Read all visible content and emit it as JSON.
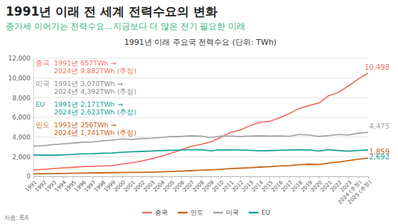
{
  "chart_data": {
    "type": "line",
    "title": "1991년 이래 전 세계 전력수요의 변화",
    "subtitle": "증가세 이어가는 전력수요…지금보다 더 많은 전기 필요한 미래",
    "chart_title": "1991년 이래 주요국 전력수요 (단위: TWh)",
    "source": "자료: IEA",
    "categories": [
      "1991",
      "1992",
      "1993",
      "1994",
      "1995",
      "1996",
      "1997",
      "1998",
      "1999",
      "2000",
      "2001",
      "2002",
      "2003",
      "2004",
      "2005",
      "2006",
      "2007",
      "2008",
      "2009",
      "2010",
      "2011",
      "2012",
      "2013",
      "2014",
      "2015",
      "2016",
      "2017",
      "2018",
      "2019",
      "2020",
      "2021",
      "2022",
      "2023",
      "2024 (추정)",
      "2025 (추정)"
    ],
    "ylim": [
      0,
      12000
    ],
    "yticks": [
      0,
      {
        "value": 2000,
        "label": "2,000"
      },
      {
        "value": 4000,
        "label": "4,000"
      },
      {
        "value": 6000,
        "label": "6,000"
      },
      {
        "value": 8000,
        "label": "8,000"
      },
      {
        "value": 10000,
        "label": "10,000"
      },
      {
        "value": 12000,
        "label": "12,000"
      }
    ],
    "grid": true,
    "legend": "bottom",
    "data_labels": true,
    "series": [
      {
        "name": "중국",
        "color": "#f0736a",
        "values": [
          657,
          720,
          790,
          860,
          920,
          980,
          1020,
          1050,
          1100,
          1250,
          1380,
          1550,
          1800,
          2050,
          2350,
          2700,
          3050,
          3250,
          3500,
          3950,
          4450,
          4700,
          5150,
          5500,
          5600,
          5950,
          6400,
          6900,
          7200,
          7450,
          8200,
          8550,
          9200,
          9882,
          10498
        ],
        "value_labels": [
          null,
          null,
          null,
          null,
          null,
          null,
          null,
          null,
          null,
          null,
          null,
          null,
          null,
          null,
          null,
          null,
          null,
          null,
          null,
          null,
          null,
          null,
          null,
          null,
          null,
          null,
          null,
          null,
          null,
          null,
          null,
          null,
          null,
          null,
          "10,498"
        ]
      },
      {
        "name": "인도",
        "color": "#c8651b",
        "values": [
          256,
          270,
          285,
          300,
          320,
          330,
          345,
          360,
          380,
          390,
          400,
          410,
          430,
          460,
          490,
          530,
          580,
          620,
          660,
          710,
          780,
          830,
          870,
          940,
          990,
          1050,
          1100,
          1180,
          1230,
          1200,
          1340,
          1450,
          1600,
          1741,
          1859
        ],
        "value_labels": [
          null,
          null,
          null,
          null,
          null,
          null,
          null,
          null,
          null,
          null,
          null,
          null,
          null,
          null,
          null,
          null,
          null,
          null,
          null,
          null,
          null,
          null,
          null,
          null,
          null,
          null,
          null,
          null,
          null,
          null,
          null,
          null,
          null,
          null,
          "1,859"
        ]
      },
      {
        "name": "미국",
        "color": "#a6a6a6",
        "values": [
          3070,
          3120,
          3220,
          3300,
          3380,
          3470,
          3500,
          3600,
          3680,
          3800,
          3750,
          3850,
          3880,
          3950,
          4050,
          4050,
          4120,
          4100,
          3950,
          4100,
          4100,
          4050,
          4100,
          4120,
          4100,
          4110,
          4080,
          4250,
          4200,
          4050,
          4150,
          4250,
          4200,
          4392,
          4475
        ],
        "value_labels": [
          null,
          null,
          null,
          null,
          null,
          null,
          null,
          null,
          null,
          null,
          null,
          null,
          null,
          null,
          null,
          null,
          null,
          null,
          null,
          null,
          null,
          null,
          null,
          null,
          null,
          null,
          null,
          null,
          null,
          null,
          null,
          null,
          null,
          null,
          "4,475"
        ]
      },
      {
        "name": "EU",
        "color": "#1aa39a",
        "values": [
          2171,
          2150,
          2150,
          2180,
          2230,
          2280,
          2300,
          2350,
          2380,
          2450,
          2500,
          2530,
          2580,
          2620,
          2650,
          2680,
          2700,
          2720,
          2600,
          2700,
          2680,
          2680,
          2650,
          2600,
          2620,
          2650,
          2680,
          2700,
          2680,
          2580,
          2700,
          2620,
          2550,
          2623,
          2692
        ],
        "value_labels": [
          null,
          null,
          null,
          null,
          null,
          null,
          null,
          null,
          null,
          null,
          null,
          null,
          null,
          null,
          null,
          null,
          null,
          null,
          null,
          null,
          null,
          null,
          null,
          null,
          null,
          null,
          null,
          null,
          null,
          null,
          null,
          null,
          null,
          null,
          "2,692"
        ]
      }
    ],
    "annotations": [
      {
        "label": "중국",
        "color": "#f0736a",
        "lines": [
          "1991년 657TWh →",
          "2024년 9,882TWh (추정)"
        ]
      },
      {
        "label": "미국",
        "color": "#8c8c8c",
        "lines": [
          "1991년 3,070TWh →",
          "2024년 4,392TWh (추정)"
        ]
      },
      {
        "label": "EU",
        "color": "#1aa39a",
        "lines": [
          "1991년 2,171TWh →",
          "2024년 2,623TWh (추정)"
        ]
      },
      {
        "label": "인도",
        "color": "#c8651b",
        "lines": [
          "1991년 256TWh →",
          "2024년 1,741TWh (추정)"
        ]
      }
    ]
  }
}
